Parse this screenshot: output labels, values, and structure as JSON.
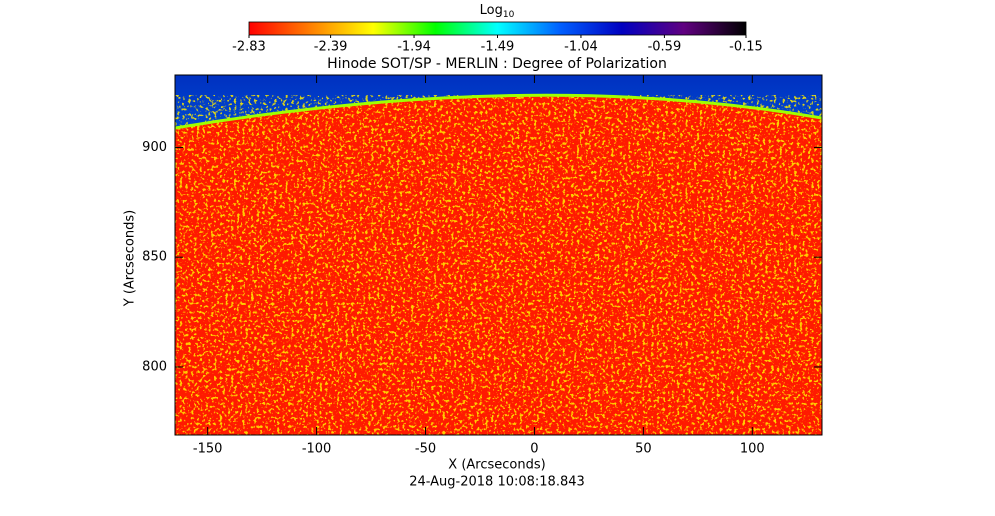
{
  "chart_data": {
    "type": "image",
    "title": "Hinode SOT/SP - MERLIN : Degree of Polarization",
    "x_label": "X (Arcseconds)",
    "y_label": "Y (Arcseconds)",
    "timestamp": "24-Aug-2018 10:08:18.843",
    "xlim": [
      -165,
      132
    ],
    "xticks": [
      -150,
      -100,
      -50,
      0,
      50,
      100
    ],
    "ylim": [
      769,
      933
    ],
    "yticks": [
      800,
      850,
      900
    ],
    "colorbar": {
      "label": "Log",
      "label_subscript": "10",
      "lim": [
        -2.83,
        -0.15
      ],
      "ticks": [
        -2.83,
        -2.39,
        -1.94,
        -1.49,
        -1.04,
        -0.59,
        -0.15
      ],
      "colors": [
        "#ff0000",
        "#ff8000",
        "#ffff00",
        "#00ff00",
        "#00ffff",
        "#0060ff",
        "#0000c0",
        "#600080",
        "#000000"
      ]
    }
  }
}
